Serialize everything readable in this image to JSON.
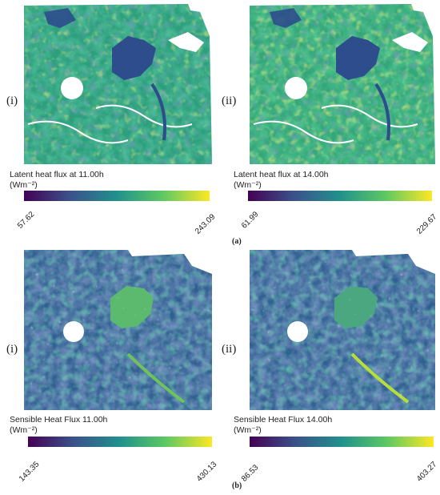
{
  "figure": {
    "subfigures": [
      {
        "label": "(a)",
        "panels": [
          {
            "roman": "(i)",
            "title": "Latent heat flux at 11.00h",
            "unit": "(Wm⁻²)",
            "min": "57.62",
            "max": "243.09"
          },
          {
            "roman": "(ii)",
            "title": "Latent heat flux at 14.00h",
            "unit": "(Wm⁻²)",
            "min": "61.99",
            "max": "229.67"
          }
        ]
      },
      {
        "label": "(b)",
        "panels": [
          {
            "roman": "(i)",
            "title": "Sensible Heat Flux 11.00h",
            "unit": "(Wm⁻²)",
            "min": "143.35",
            "max": "430.13"
          },
          {
            "roman": "(ii)",
            "title": "Sensible Heat Flux 14.00h",
            "unit": "(Wm⁻²)",
            "min": "86.53",
            "max": "403.27"
          }
        ]
      }
    ],
    "colormap": [
      "#440154",
      "#3b528b",
      "#21918c",
      "#5ec962",
      "#fde725"
    ]
  }
}
